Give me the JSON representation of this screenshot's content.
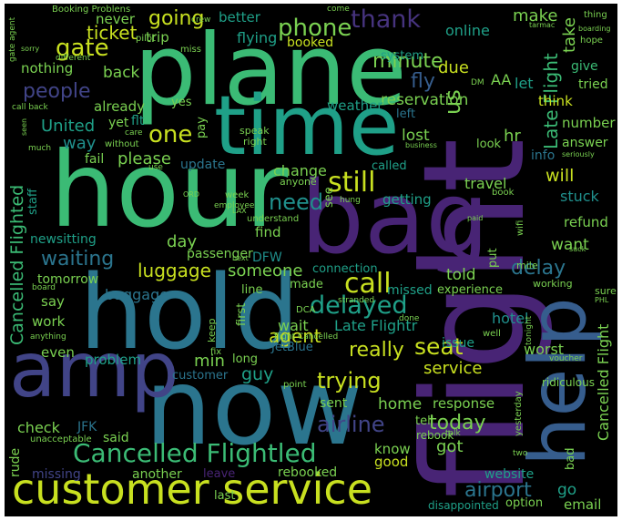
{
  "palette": {
    "background": "#000000",
    "yellow": "#c8e020",
    "lime": "#7ad151",
    "green": "#3bbb75",
    "teal": "#1fa088",
    "cyan": "#20908d",
    "steel": "#2b758e",
    "blue": "#365d8d",
    "indigo": "#414487",
    "purple": "#46337e",
    "violet": "#482475",
    "dark": "#3e1b5c",
    "dim": "#2f1e48"
  },
  "words": [
    {
      "text": "flight",
      "color": "violet"
    },
    {
      "text": "plane",
      "color": "green"
    },
    {
      "text": "hour",
      "color": "green"
    },
    {
      "text": "time",
      "color": "teal"
    },
    {
      "text": "bag",
      "color": "violet"
    },
    {
      "text": "hold",
      "color": "steel"
    },
    {
      "text": "now",
      "color": "steel"
    },
    {
      "text": "amp",
      "color": "indigo"
    },
    {
      "text": "help",
      "color": "blue"
    },
    {
      "text": "customer service",
      "color": "yellow"
    },
    {
      "text": "Cancelled Flightled",
      "color": "green"
    },
    {
      "text": "phone",
      "color": "lime"
    },
    {
      "text": "thank",
      "color": "purple"
    },
    {
      "text": "going",
      "color": "yellow"
    },
    {
      "text": "gate",
      "color": "yellow"
    },
    {
      "text": "call",
      "color": "yellow"
    },
    {
      "text": "still",
      "color": "yellow"
    },
    {
      "text": "one",
      "color": "yellow"
    },
    {
      "text": "need",
      "color": "cyan"
    },
    {
      "text": "delayed",
      "color": "teal"
    },
    {
      "text": "seat",
      "color": "yellow"
    },
    {
      "text": "trying",
      "color": "yellow"
    },
    {
      "text": "minute",
      "color": "lime"
    },
    {
      "text": "people",
      "color": "indigo"
    },
    {
      "text": "waiting",
      "color": "steel"
    },
    {
      "text": "luggage",
      "color": "yellow"
    },
    {
      "text": "airline",
      "color": "indigo"
    },
    {
      "text": "today",
      "color": "lime"
    },
    {
      "text": "delay",
      "color": "steel"
    },
    {
      "text": "Late Flightr",
      "color": "teal"
    },
    {
      "text": "Cancelled Flight",
      "color": "lime"
    },
    {
      "text": "Late Flight",
      "color": "green"
    },
    {
      "text": "Cancelled Flighted",
      "color": "green"
    },
    {
      "text": "airport",
      "color": "steel"
    },
    {
      "text": "fly",
      "color": "blue"
    },
    {
      "text": "us",
      "color": "lime"
    },
    {
      "text": "really",
      "color": "yellow"
    },
    {
      "text": "agent",
      "color": "yellow"
    },
    {
      "text": "make",
      "color": "lime"
    },
    {
      "text": "take",
      "color": "lime"
    },
    {
      "text": "ticket",
      "color": "yellow"
    },
    {
      "text": "online",
      "color": "teal"
    },
    {
      "text": "booked",
      "color": "yellow"
    },
    {
      "text": "flying",
      "color": "teal"
    },
    {
      "text": "due",
      "color": "yellow"
    },
    {
      "text": "will",
      "color": "yellow"
    },
    {
      "text": "change",
      "color": "lime"
    },
    {
      "text": "reservation",
      "color": "lime"
    },
    {
      "text": "lost",
      "color": "lime"
    },
    {
      "text": "hr",
      "color": "lime"
    },
    {
      "text": "United",
      "color": "teal"
    },
    {
      "text": "way",
      "color": "cyan"
    },
    {
      "text": "back",
      "color": "lime"
    },
    {
      "text": "please",
      "color": "lime"
    },
    {
      "text": "day",
      "color": "lime"
    },
    {
      "text": "want",
      "color": "lime"
    },
    {
      "text": "someone",
      "color": "lime"
    },
    {
      "text": "told",
      "color": "lime"
    },
    {
      "text": "go",
      "color": "teal"
    },
    {
      "text": "got",
      "color": "lime"
    },
    {
      "text": "service",
      "color": "yellow"
    },
    {
      "text": "issue",
      "color": "teal"
    },
    {
      "text": "refund",
      "color": "lime"
    },
    {
      "text": "stuck",
      "color": "cyan"
    },
    {
      "text": "weather",
      "color": "teal"
    },
    {
      "text": "answer",
      "color": "lime"
    },
    {
      "text": "number",
      "color": "lime"
    },
    {
      "text": "think",
      "color": "yellow"
    },
    {
      "text": "guy",
      "color": "teal"
    },
    {
      "text": "min",
      "color": "lime"
    },
    {
      "text": "email",
      "color": "lime"
    },
    {
      "text": "response",
      "color": "lime"
    },
    {
      "text": "home",
      "color": "lime"
    },
    {
      "text": "worst",
      "color": "lime"
    },
    {
      "text": "hotel",
      "color": "cyan"
    },
    {
      "text": "check",
      "color": "lime"
    },
    {
      "text": "good",
      "color": "yellow"
    },
    {
      "text": "work",
      "color": "lime"
    },
    {
      "text": "baggage",
      "color": "steel"
    },
    {
      "text": "say",
      "color": "lime"
    },
    {
      "text": "tomorrow",
      "color": "lime"
    },
    {
      "text": "passenger",
      "color": "lime"
    },
    {
      "text": "find",
      "color": "lime"
    },
    {
      "text": "getting",
      "color": "teal"
    },
    {
      "text": "travel",
      "color": "lime"
    },
    {
      "text": "connection",
      "color": "teal"
    },
    {
      "text": "missed",
      "color": "teal"
    },
    {
      "text": "experience",
      "color": "lime"
    },
    {
      "text": "problem",
      "color": "teal"
    },
    {
      "text": "even",
      "color": "lime"
    },
    {
      "text": "another",
      "color": "lime"
    },
    {
      "text": "rebooked",
      "color": "lime"
    },
    {
      "text": "know",
      "color": "lime"
    },
    {
      "text": "JFK",
      "color": "steel"
    },
    {
      "text": "said",
      "color": "lime"
    },
    {
      "text": "rude",
      "color": "lime"
    },
    {
      "text": "missing",
      "color": "indigo"
    },
    {
      "text": "last",
      "color": "lime"
    },
    {
      "text": "sent",
      "color": "lime"
    },
    {
      "text": "wait",
      "color": "lime"
    },
    {
      "text": "nothing",
      "color": "lime"
    },
    {
      "text": "never",
      "color": "lime"
    },
    {
      "text": "AA",
      "color": "lime"
    },
    {
      "text": "let",
      "color": "teal"
    },
    {
      "text": "give",
      "color": "green"
    },
    {
      "text": "tried",
      "color": "lime"
    },
    {
      "text": "system",
      "color": "teal"
    },
    {
      "text": "newsitting",
      "color": "teal"
    },
    {
      "text": "staff",
      "color": "teal"
    },
    {
      "text": "DFW",
      "color": "cyan"
    },
    {
      "text": "update",
      "color": "steel"
    },
    {
      "text": "fail",
      "color": "lime"
    },
    {
      "text": "customer",
      "color": "steel"
    },
    {
      "text": "already",
      "color": "lime"
    },
    {
      "text": "yet",
      "color": "lime"
    },
    {
      "text": "flt",
      "color": "teal"
    },
    {
      "text": "better",
      "color": "teal"
    },
    {
      "text": "trip",
      "color": "lime"
    },
    {
      "text": "left",
      "color": "steel"
    },
    {
      "text": "look",
      "color": "lime"
    },
    {
      "text": "info",
      "color": "steel"
    },
    {
      "text": "called",
      "color": "teal"
    },
    {
      "text": "put",
      "color": "lime"
    },
    {
      "text": "see",
      "color": "lime"
    },
    {
      "text": "made",
      "color": "lime"
    },
    {
      "text": "line",
      "color": "lime"
    },
    {
      "text": "JetBlue",
      "color": "steel"
    },
    {
      "text": "tell",
      "color": "lime"
    },
    {
      "text": "mile",
      "color": "lime"
    },
    {
      "text": "working",
      "color": "lime"
    },
    {
      "text": "sure",
      "color": "lime"
    },
    {
      "text": "bad",
      "color": "lime"
    },
    {
      "text": "ridiculous",
      "color": "lime"
    },
    {
      "text": "website",
      "color": "teal"
    },
    {
      "text": "option",
      "color": "lime"
    },
    {
      "text": "disappointed",
      "color": "teal"
    },
    {
      "text": "leave",
      "color": "violet"
    },
    {
      "text": "unacceptable",
      "color": "lime"
    },
    {
      "text": "first",
      "color": "lime"
    },
    {
      "text": "keep",
      "color": "lime"
    },
    {
      "text": "long",
      "color": "lime"
    },
    {
      "text": "fix",
      "color": "lime"
    },
    {
      "text": "yes",
      "color": "lime"
    },
    {
      "text": "pay",
      "color": "lime"
    },
    {
      "text": "speak",
      "color": "lime"
    },
    {
      "text": "right",
      "color": "lime"
    },
    {
      "text": "anyone",
      "color": "lime"
    },
    {
      "text": "week",
      "color": "lime"
    },
    {
      "text": "employee",
      "color": "lime"
    },
    {
      "text": "understand",
      "color": "lime"
    },
    {
      "text": "hung",
      "color": "lime"
    },
    {
      "text": "book",
      "color": "lime"
    },
    {
      "text": "wifi",
      "color": "lime"
    },
    {
      "text": "DCA",
      "color": "lime"
    },
    {
      "text": "stranded",
      "color": "lime"
    },
    {
      "text": "done",
      "color": "lime"
    },
    {
      "text": "well",
      "color": "lime"
    },
    {
      "text": "voucher",
      "color": "lime"
    },
    {
      "text": "point",
      "color": "lime"
    },
    {
      "text": "talk",
      "color": "lime"
    },
    {
      "text": "two",
      "color": "lime"
    },
    {
      "text": "yesterday",
      "color": "lime"
    },
    {
      "text": "tonight",
      "color": "lime"
    },
    {
      "text": "flight Cancelled",
      "color": "lime"
    },
    {
      "text": "rebook",
      "color": "lime"
    },
    {
      "text": "Booking Problens",
      "color": "lime"
    },
    {
      "text": "crew",
      "color": "lime"
    },
    {
      "text": "come",
      "color": "lime"
    },
    {
      "text": "thing",
      "color": "lime"
    },
    {
      "text": "hope",
      "color": "lime"
    },
    {
      "text": "boarding",
      "color": "lime"
    },
    {
      "text": "pilot",
      "color": "lime"
    },
    {
      "text": "miss",
      "color": "lime"
    },
    {
      "text": "gate agent",
      "color": "lime"
    },
    {
      "text": "sorry",
      "color": "lime"
    },
    {
      "text": "call back",
      "color": "lime"
    },
    {
      "text": "without",
      "color": "lime"
    },
    {
      "text": "care",
      "color": "lime"
    },
    {
      "text": "much",
      "color": "lime"
    },
    {
      "text": "use",
      "color": "lime"
    },
    {
      "text": "seen",
      "color": "lime"
    },
    {
      "text": "business",
      "color": "lime"
    },
    {
      "text": "seriously",
      "color": "lime"
    },
    {
      "text": "board",
      "color": "lime"
    },
    {
      "text": "anything",
      "color": "lime"
    },
    {
      "text": "DM",
      "color": "lime"
    },
    {
      "text": "LAX",
      "color": "lime"
    },
    {
      "text": "ORD",
      "color": "lime"
    },
    {
      "text": "next",
      "color": "lime"
    },
    {
      "text": "different",
      "color": "lime"
    },
    {
      "text": "tarmac",
      "color": "lime"
    },
    {
      "text": "suck",
      "color": "lime"
    },
    {
      "text": "PHL",
      "color": "lime"
    },
    {
      "text": "paid",
      "color": "lime"
    }
  ]
}
